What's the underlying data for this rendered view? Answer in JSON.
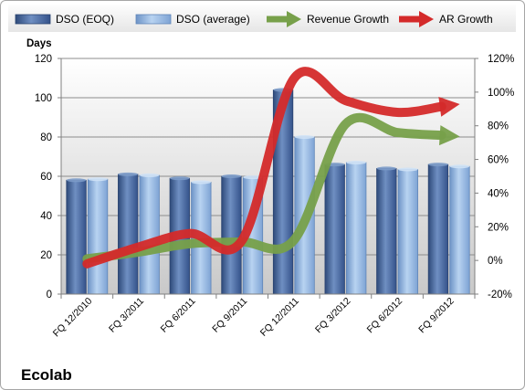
{
  "company": "Ecolab",
  "chart_data": {
    "type": "bar",
    "categories": [
      "FQ 12/2010",
      "FQ 3/2011",
      "FQ 6/2011",
      "FQ 9/2011",
      "FQ 12/2011",
      "FQ 3/2012",
      "FQ 6/2012",
      "FQ 9/2012"
    ],
    "ylabel": "Days",
    "ylim": [
      0,
      120
    ],
    "yticks": [
      0,
      20,
      40,
      60,
      80,
      100,
      120
    ],
    "y2lim": [
      -20,
      120
    ],
    "y2ticks": [
      "-20%",
      "0%",
      "20%",
      "40%",
      "60%",
      "80%",
      "100%",
      "120%"
    ],
    "y2tick_values": [
      -20,
      0,
      20,
      40,
      60,
      80,
      100,
      120
    ],
    "grid": true,
    "legend_position": "top",
    "series": [
      {
        "name": "DSO (EOQ)",
        "axis": "left",
        "kind": "bar",
        "color": "#4f6fa0",
        "values": [
          58,
          61,
          59,
          60,
          104,
          66,
          64,
          66
        ]
      },
      {
        "name": "DSO (average)",
        "axis": "left",
        "kind": "bar",
        "color": "#8fb4e0",
        "values": [
          58.5,
          60.5,
          57,
          59.5,
          80,
          67,
          63.5,
          65
        ]
      },
      {
        "name": "Revenue Growth",
        "axis": "right",
        "kind": "arrow-line",
        "color": "#77a04a",
        "values": [
          1,
          5,
          10,
          11,
          12,
          81,
          76,
          74
        ]
      },
      {
        "name": "AR Growth",
        "axis": "right",
        "kind": "arrow-line",
        "color": "#d42a2a",
        "values": [
          -2,
          8,
          16,
          12,
          108,
          95,
          88,
          92
        ]
      }
    ]
  }
}
